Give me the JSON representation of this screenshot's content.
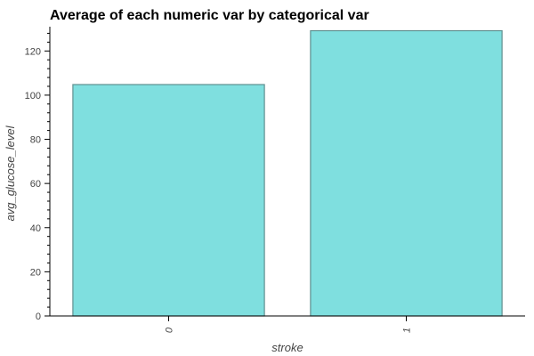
{
  "chart_data": {
    "type": "bar",
    "title": "Average of each numeric var by categorical var",
    "xlabel": "stroke",
    "ylabel": "avg_glucose_level",
    "categories": [
      "0",
      "1"
    ],
    "values": [
      104.8,
      129.2
    ],
    "ylim": [
      0,
      131
    ],
    "yticks": [
      0,
      20,
      40,
      60,
      80,
      100,
      120
    ],
    "y_minor_step": 4,
    "grid": false,
    "legend": "none",
    "x_tick_rotation": "vertical",
    "colors": {
      "bar_fill": "#7fdfdf",
      "bar_stroke": "#5f8f8f",
      "axis": "#000000",
      "text": "#444444"
    }
  }
}
